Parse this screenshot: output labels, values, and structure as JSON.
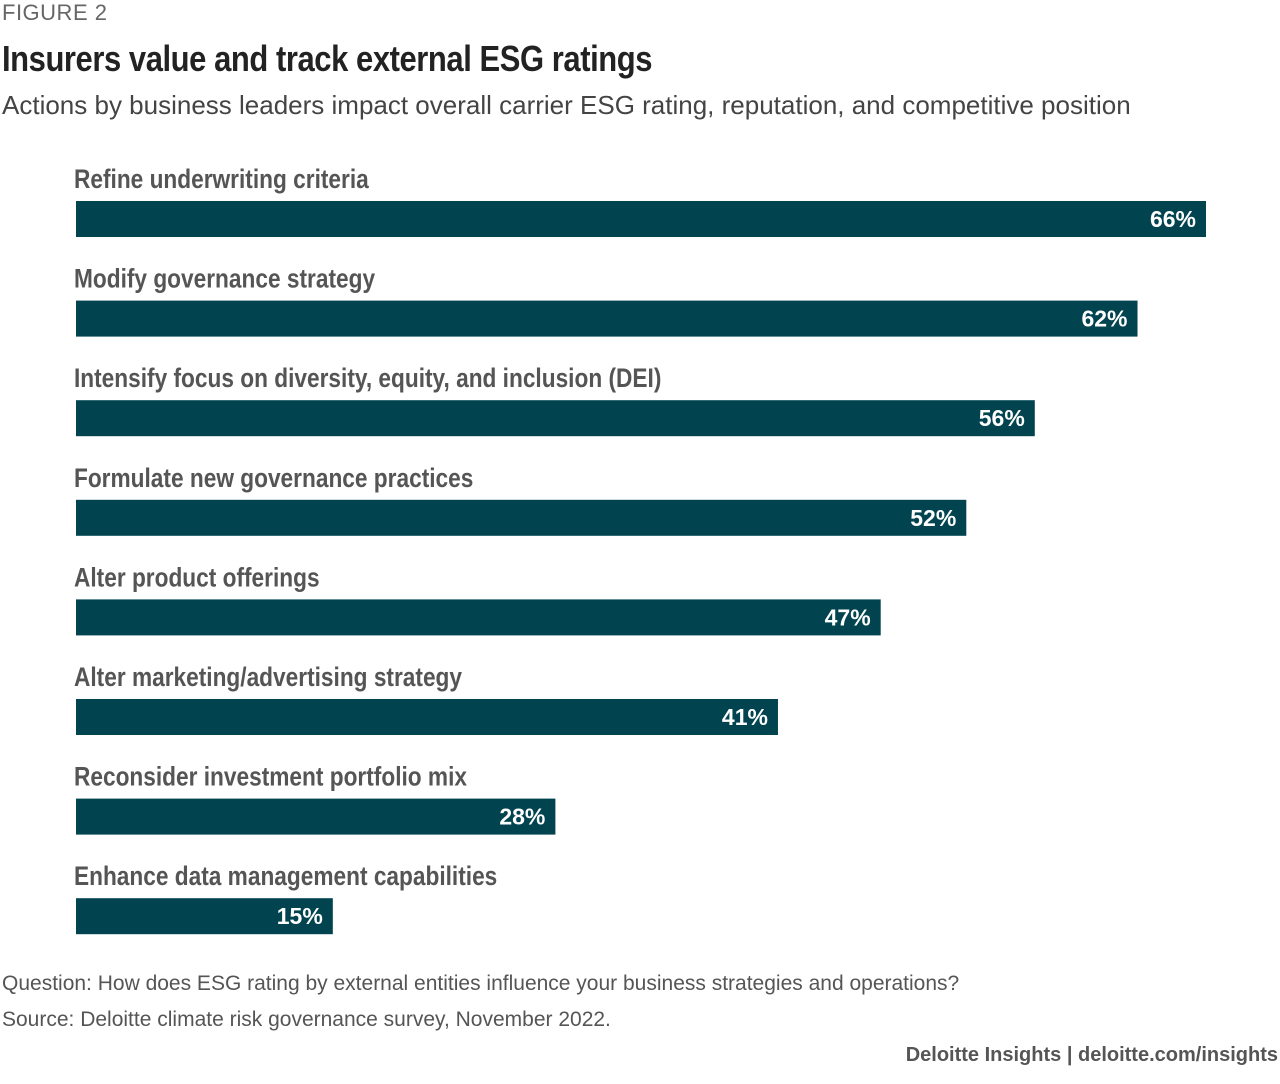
{
  "figure_label": "FIGURE 2",
  "title": "Insurers value and track external ESG ratings",
  "subtitle": "Actions by business leaders impact overall carrier ESG rating, reputation, and competitive position",
  "chart_data": {
    "type": "bar",
    "orientation": "horizontal",
    "categories": [
      "Refine underwriting criteria",
      "Modify governance strategy",
      "Intensify focus on diversity, equity, and inclusion (DEI)",
      "Formulate new governance practices",
      "Alter product offerings",
      "Alter marketing/advertising strategy",
      "Reconsider investment portfolio mix",
      "Enhance data management capabilities"
    ],
    "values": [
      66,
      62,
      56,
      52,
      47,
      41,
      28,
      15
    ],
    "value_labels": [
      "66%",
      "62%",
      "56%",
      "52%",
      "47%",
      "41%",
      "28%",
      "15%"
    ],
    "unit": "%",
    "grid": false,
    "bar_color": "#01444f"
  },
  "notes": {
    "question": "Question: How does ESG rating by external entities influence your business strategies and operations?",
    "source": "Source: Deloitte climate risk governance survey, November 2022."
  },
  "credit": "Deloitte Insights | deloitte.com/insights"
}
